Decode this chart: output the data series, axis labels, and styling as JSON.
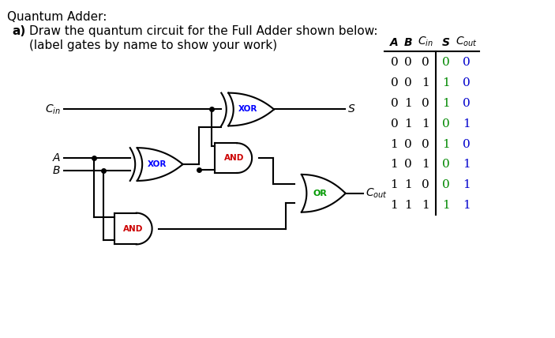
{
  "title_line1": "Quantum Adder:",
  "title_line2a": "a)",
  "title_line2b": "Draw the quantum circuit for the Full Adder shown below:",
  "title_line3": "(label gates by name to show your work)",
  "truth_table": {
    "rows": [
      [
        0,
        0,
        0,
        0,
        0
      ],
      [
        0,
        0,
        1,
        1,
        0
      ],
      [
        0,
        1,
        0,
        1,
        0
      ],
      [
        0,
        1,
        1,
        0,
        1
      ],
      [
        1,
        0,
        0,
        1,
        0
      ],
      [
        1,
        0,
        1,
        0,
        1
      ],
      [
        1,
        1,
        0,
        0,
        1
      ],
      [
        1,
        1,
        1,
        1,
        1
      ]
    ]
  },
  "bg_color": "#ffffff",
  "xor_color": "#0000ff",
  "and_color": "#cc0000",
  "or_color": "#009900",
  "wire_color": "#000000"
}
